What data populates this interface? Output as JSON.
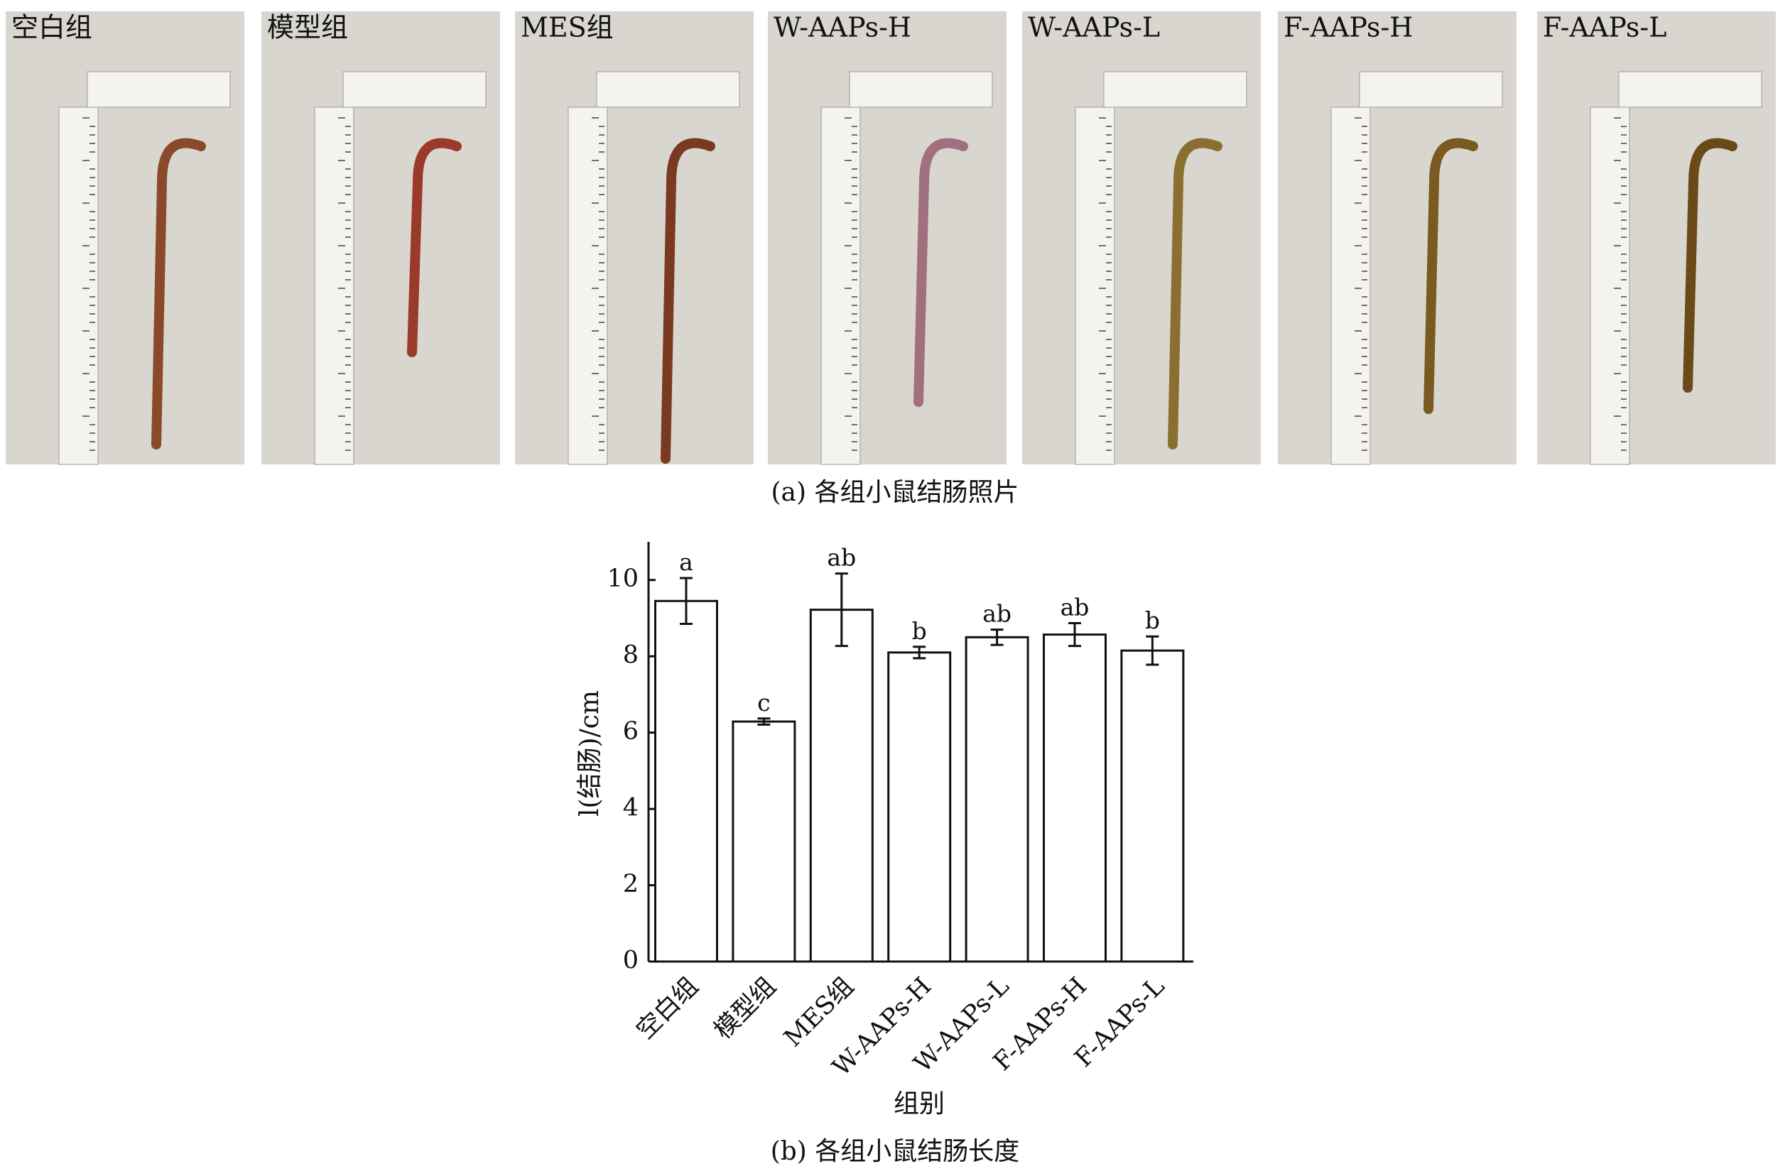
{
  "photo_panel": {
    "labels": [
      "空白组",
      "模型组",
      "MES组",
      "W-AAPs-H",
      "W-AAPs-L",
      "F-AAPs-H",
      "F-AAPs-L"
    ],
    "caption": "(a) 各组小鼠结肠照片"
  },
  "chart_data": {
    "type": "bar",
    "categories": [
      "空白组",
      "模型组",
      "MES组",
      "W-AAPs-H",
      "W-AAPs-L",
      "F-AAPs-H",
      "F-AAPs-L"
    ],
    "values": [
      9.45,
      6.29,
      9.22,
      8.1,
      8.5,
      8.57,
      8.15
    ],
    "errors": [
      0.6,
      0.08,
      0.95,
      0.15,
      0.2,
      0.3,
      0.37
    ],
    "letters": [
      "a",
      "c",
      "ab",
      "b",
      "ab",
      "ab",
      "b"
    ],
    "color": "#ffffff",
    "ylim": [
      0,
      11
    ],
    "yticks": [
      0,
      2,
      4,
      6,
      8,
      10
    ],
    "ylabel": "l(结肠)/cm",
    "xlabel": "组别",
    "caption": "(b) 各组小鼠结肠长度"
  }
}
